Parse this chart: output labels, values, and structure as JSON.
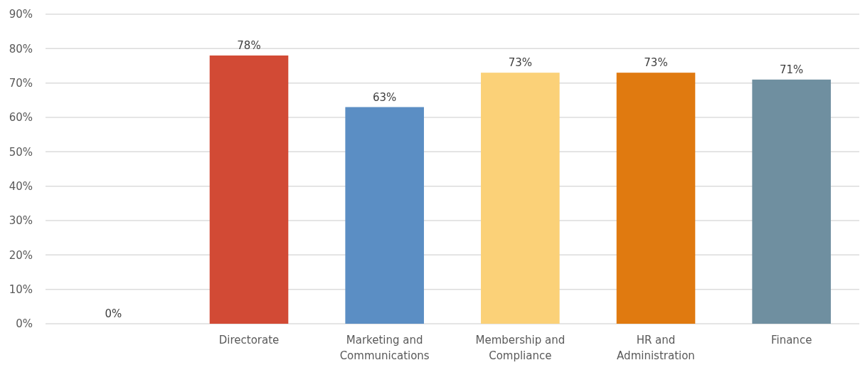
{
  "chart_data": {
    "type": "bar",
    "categories": [
      null,
      "Directorate",
      "Marketing and Communications",
      "Membership and Compliance",
      "HR and Administration",
      "Finance"
    ],
    "values": [
      0,
      78,
      63,
      73,
      73,
      71
    ],
    "colors": [
      "#9e9e9e",
      "#d24a35",
      "#5b8ec4",
      "#fbd178",
      "#e07a10",
      "#6f8fa0"
    ],
    "value_labels": [
      "0%",
      "78%",
      "63%",
      "73%",
      "73%",
      "71%"
    ],
    "ylim": [
      0,
      90
    ],
    "yticks": [
      {
        "value": 0,
        "label": "0%"
      },
      {
        "value": 10,
        "label": "10%"
      },
      {
        "value": 20,
        "label": "20%"
      },
      {
        "value": 30,
        "label": "30%"
      },
      {
        "value": 40,
        "label": "40%"
      },
      {
        "value": 50,
        "label": "50%"
      },
      {
        "value": 60,
        "label": "60%"
      },
      {
        "value": 70,
        "label": "70%"
      },
      {
        "value": 80,
        "label": "80%"
      },
      {
        "value": 90,
        "label": "90%"
      }
    ],
    "grid": "y"
  }
}
